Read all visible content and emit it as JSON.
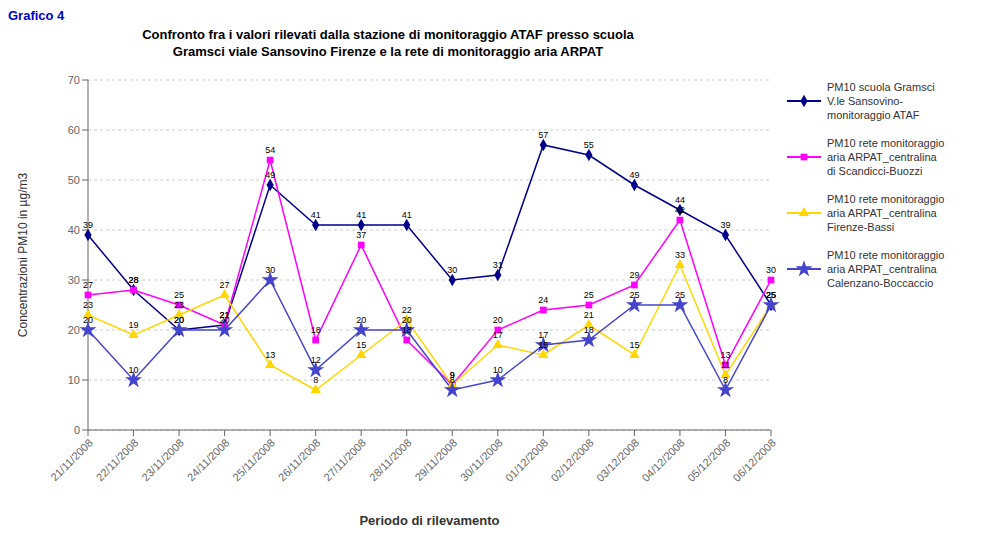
{
  "chart_data": {
    "type": "line",
    "title": "Confronto fra i valori rilevati dalla stazione di monitoraggio ATAF presso scuola\nGramsci viale Sansovino Firenze e la rete di monitoraggio aria ARPAT",
    "annotations": [
      {
        "text": "Grafico 4",
        "color": "#0000CC"
      }
    ],
    "x_label": "Periodo di rilevamento",
    "y_label": "Concentrazioni PM10 in µg/m3",
    "categories": [
      "21/11/2008",
      "22/11/2008",
      "23/11/2008",
      "24/11/2008",
      "25/11/2008",
      "26/11/2008",
      "27/11/2008",
      "28/11/2008",
      "29/11/2008",
      "30/11/2008",
      "01/12/2008",
      "02/12/2008",
      "03/12/2008",
      "04/12/2008",
      "05/12/2008",
      "06/12/2008"
    ],
    "series": [
      {
        "name": "PM10 scuola Gramsci\nV.le Sansovino-\nmonitoraggio ATAF",
        "color": "#00008B",
        "marker": "diamond",
        "values": [
          39,
          28,
          20,
          21,
          49,
          41,
          41,
          41,
          30,
          31,
          57,
          55,
          49,
          44,
          39,
          25
        ]
      },
      {
        "name": "PM10 rete monitoraggio\naria ARPAT_centralina\ndi Scandicci-Buozzi",
        "color": "#FF00FF",
        "marker": "square",
        "values": [
          27,
          28,
          25,
          21,
          54,
          18,
          37,
          18,
          9,
          20,
          24,
          25,
          29,
          42,
          13,
          30
        ]
      },
      {
        "name": "PM10 rete monitoraggio\naria ARPAT_centralina\nFirenze-Bassi",
        "color": "#FFD700",
        "marker": "triangle",
        "values": [
          23,
          19,
          23,
          27,
          13,
          8,
          15,
          22,
          9,
          17,
          15,
          21,
          15,
          33,
          11,
          25
        ]
      },
      {
        "name": "PM10 rete monitoraggio\naria ARPAT_centralina\nCalenzano-Boccaccio",
        "color": "#4444CC",
        "marker": "star",
        "values": [
          20,
          10,
          20,
          20,
          30,
          12,
          20,
          20,
          8,
          10,
          17,
          18,
          25,
          25,
          8,
          25
        ]
      }
    ],
    "ylim": [
      0,
      70
    ],
    "yticks": [
      0,
      10,
      20,
      30,
      40,
      50,
      60,
      70
    ],
    "grid": true,
    "legend": "right",
    "data_labels": true
  }
}
